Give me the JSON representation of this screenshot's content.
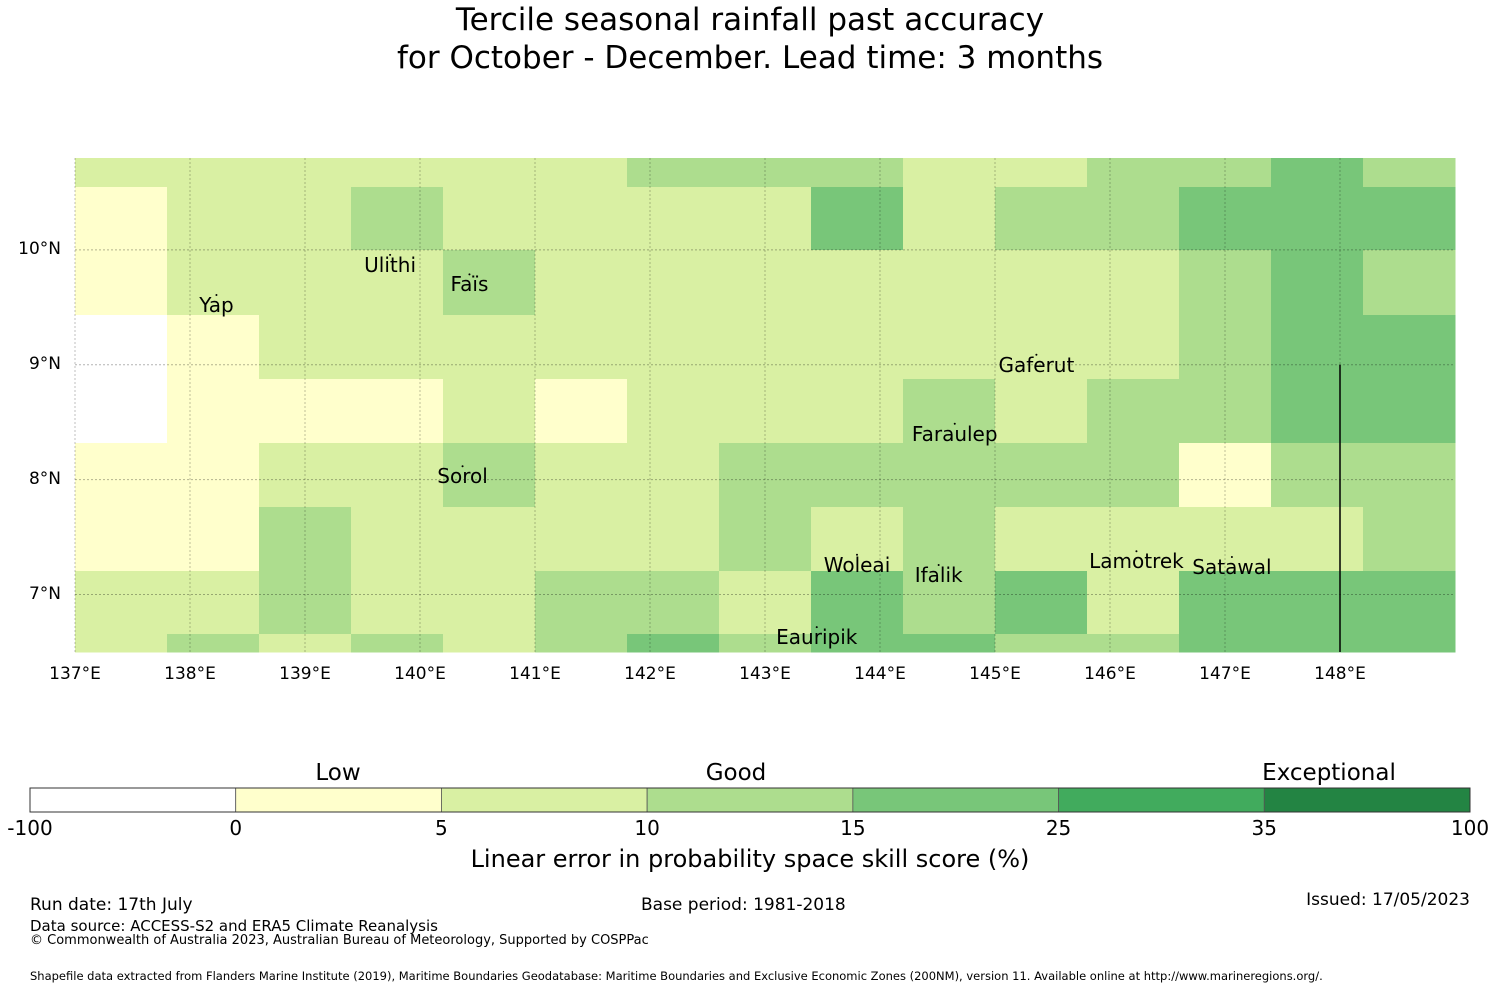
{
  "title": {
    "line1": "Tercile seasonal rainfall past accuracy",
    "line2": "for October - December. Lead time: 3 months"
  },
  "map": {
    "lon_range": [
      137,
      149
    ],
    "lat_range": [
      6.5,
      10.8
    ],
    "lat_ticks": [
      {
        "value": 10,
        "label": "10°N"
      },
      {
        "value": 9,
        "label": "9°N"
      },
      {
        "value": 8,
        "label": "8°N"
      },
      {
        "value": 7,
        "label": "7°N"
      }
    ],
    "lon_ticks": [
      {
        "value": 137,
        "label": "137°E"
      },
      {
        "value": 138,
        "label": "138°E"
      },
      {
        "value": 139,
        "label": "139°E"
      },
      {
        "value": 140,
        "label": "140°E"
      },
      {
        "value": 141,
        "label": "141°E"
      },
      {
        "value": 142,
        "label": "142°E"
      },
      {
        "value": 143,
        "label": "143°E"
      },
      {
        "value": 144,
        "label": "144°E"
      },
      {
        "value": 145,
        "label": "145°E"
      },
      {
        "value": 146,
        "label": "146°E"
      },
      {
        "value": 147,
        "label": "147°E"
      },
      {
        "value": 148,
        "label": "148°E"
      }
    ],
    "grid_cell_classes": [
      [
        2,
        2,
        2,
        2,
        2,
        2,
        3,
        3,
        3,
        2,
        2,
        3,
        3,
        4,
        3
      ],
      [
        1,
        2,
        2,
        3,
        2,
        2,
        2,
        2,
        4,
        2,
        3,
        3,
        4,
        4,
        4
      ],
      [
        1,
        2,
        2,
        2,
        3,
        2,
        2,
        2,
        2,
        2,
        2,
        2,
        3,
        4,
        3
      ],
      [
        0,
        1,
        2,
        2,
        2,
        2,
        2,
        2,
        2,
        2,
        2,
        2,
        3,
        4,
        4
      ],
      [
        0,
        1,
        1,
        1,
        2,
        1,
        2,
        2,
        2,
        3,
        2,
        3,
        3,
        4,
        4
      ],
      [
        1,
        1,
        2,
        2,
        3,
        2,
        2,
        3,
        3,
        3,
        3,
        3,
        1,
        3,
        3
      ],
      [
        1,
        1,
        3,
        2,
        2,
        2,
        2,
        3,
        2,
        3,
        2,
        2,
        2,
        2,
        3
      ],
      [
        2,
        2,
        3,
        2,
        2,
        3,
        3,
        2,
        4,
        3,
        4,
        2,
        4,
        4,
        4
      ],
      [
        2,
        3,
        2,
        3,
        2,
        3,
        4,
        3,
        4,
        4,
        3,
        3,
        4,
        4,
        4
      ]
    ],
    "places": [
      {
        "name": "Yap",
        "lon": 138.23,
        "lat": 9.52
      },
      {
        "name": "Ulithi",
        "lon": 139.74,
        "lat": 9.87
      },
      {
        "name": "Faïs",
        "lon": 140.43,
        "lat": 9.7
      },
      {
        "name": "Gaferut",
        "lon": 145.36,
        "lat": 9.0
      },
      {
        "name": "Faraulep",
        "lon": 144.65,
        "lat": 8.4
      },
      {
        "name": "Sorol",
        "lon": 140.37,
        "lat": 8.03
      },
      {
        "name": "Woleai",
        "lon": 143.8,
        "lat": 7.26
      },
      {
        "name": "Ifalik",
        "lon": 144.51,
        "lat": 7.17
      },
      {
        "name": "Lamotrek",
        "lon": 146.23,
        "lat": 7.29
      },
      {
        "name": "Satawal",
        "lon": 147.06,
        "lat": 7.24
      },
      {
        "name": "Eauripik",
        "lon": 143.45,
        "lat": 6.63
      }
    ],
    "boundary_line": {
      "lon": 148.0,
      "lat_from": 6.5,
      "lat_to": 9.0
    }
  },
  "colorbar": {
    "classes": [
      {
        "from": -100,
        "to": 0,
        "color": "#ffffff"
      },
      {
        "from": 0,
        "to": 5,
        "color": "#ffffcc"
      },
      {
        "from": 5,
        "to": 10,
        "color": "#d9f0a3"
      },
      {
        "from": 10,
        "to": 15,
        "color": "#addd8e"
      },
      {
        "from": 15,
        "to": 25,
        "color": "#78c679"
      },
      {
        "from": 25,
        "to": 35,
        "color": "#41ab5d"
      },
      {
        "from": 35,
        "to": 100,
        "color": "#238443"
      }
    ],
    "tick_labels": [
      "-100",
      "0",
      "5",
      "10",
      "15",
      "25",
      "35",
      "100"
    ],
    "categories": [
      "Low",
      "Good",
      "Exceptional"
    ],
    "label": "Linear error in probability space skill score (%)"
  },
  "footer": {
    "run_date": "Run date: 17th July",
    "data_source": "Data source: ACCESS-S2 and ERA5 Climate Reanalysis",
    "copyright": "© Commonwealth of Australia 2023, Australian Bureau of Meteorology, Supported by COSPPac",
    "base_period": "Base period: 1981-2018",
    "issued": "Issued: 17/05/2023",
    "shapefile_note": "Shapefile data extracted from Flanders Marine Institute (2019), Maritime Boundaries Geodatabase: Maritime Boundaries and Exclusive Economic Zones (200NM), version 11. Available online at http://www.marineregions.org/."
  }
}
